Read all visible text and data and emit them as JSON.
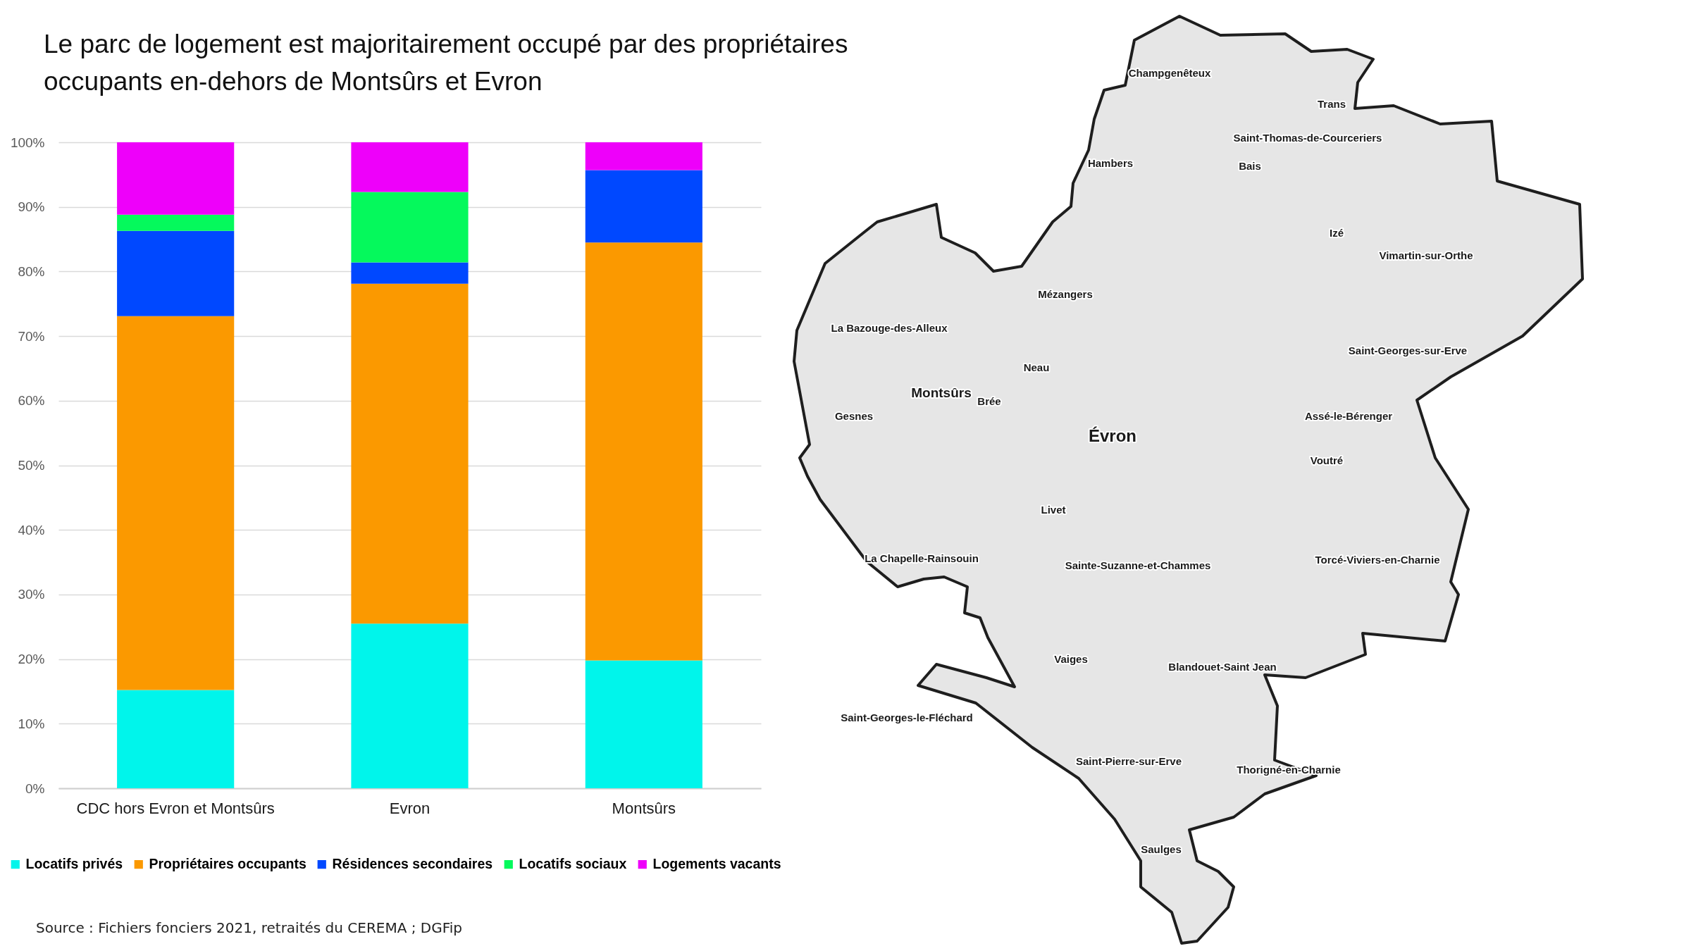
{
  "chart_data": [
    {
      "type": "bar",
      "title": "Le parc de logement est majoritairement occupé par des propriétaires occupants en-dehors de Montsûrs et Evron",
      "categories": [
        "CDC hors Evron et Montsûrs",
        "Evron",
        "Montsûrs"
      ],
      "stacked": true,
      "series": [
        {
          "name": "Locatifs privés",
          "color": "#00f5eb",
          "values": [
            15.2,
            25.5,
            19.8
          ]
        },
        {
          "name": "Propriétaires occupants",
          "color": "#fb9900",
          "values": [
            57.9,
            52.6,
            64.7
          ]
        },
        {
          "name": "Résidences secondaires",
          "color": "#0048ff",
          "values": [
            13.2,
            3.3,
            11.2
          ]
        },
        {
          "name": "Locatifs sociaux",
          "color": "#05f95c",
          "values": [
            2.5,
            10.9,
            null
          ]
        },
        {
          "name": "Logements vacants",
          "color": "#ee00fa",
          "values": [
            11.2,
            7.7,
            4.3
          ]
        }
      ],
      "ylim": [
        0,
        100
      ],
      "yticks": [
        {
          "value": 0,
          "label": "0%"
        },
        {
          "value": 10,
          "label": "10%"
        },
        {
          "value": 20,
          "label": "20%"
        },
        {
          "value": 30,
          "label": "30%"
        },
        {
          "value": 40,
          "label": "40%"
        },
        {
          "value": 50,
          "label": "50%"
        },
        {
          "value": 60,
          "label": "60%"
        },
        {
          "value": 70,
          "label": "70%"
        },
        {
          "value": 80,
          "label": "80%"
        },
        {
          "value": 90,
          "label": "90%"
        },
        {
          "value": 100,
          "label": "100%"
        }
      ],
      "grid": "y",
      "legend": "bottom",
      "annotations": [
        "Source : Fichiers fonciers 2021, retraités du CEREMA ; DGFip"
      ]
    },
    {
      "type": "other",
      "annotations": [
        "Champgenêteux",
        "Trans",
        "Saint-Thomas-de-Courceriers",
        "Hambers",
        "Bais",
        "Izé",
        "Vimartin-sur-Orthe",
        "Mézangers",
        "La Bazouge-des-Alleux",
        "Saint-Georges-sur-Erve",
        "Neau",
        "Montsûrs",
        "Brée",
        "Gesnes",
        "Évron",
        "Assé-le-Bérenger",
        "Voutré",
        "Livet",
        "La Chapelle-Rainsouin",
        "Sainte-Suzanne-et-Chammes",
        "Torcé-Viviers-en-Charnie",
        "Vaiges",
        "Blandouet-Saint Jean",
        "Saint-Georges-le-Fléchard",
        "Saint-Pierre-sur-Erve",
        "Thorigné-en-Charnie",
        "Saulges"
      ]
    }
  ]
}
